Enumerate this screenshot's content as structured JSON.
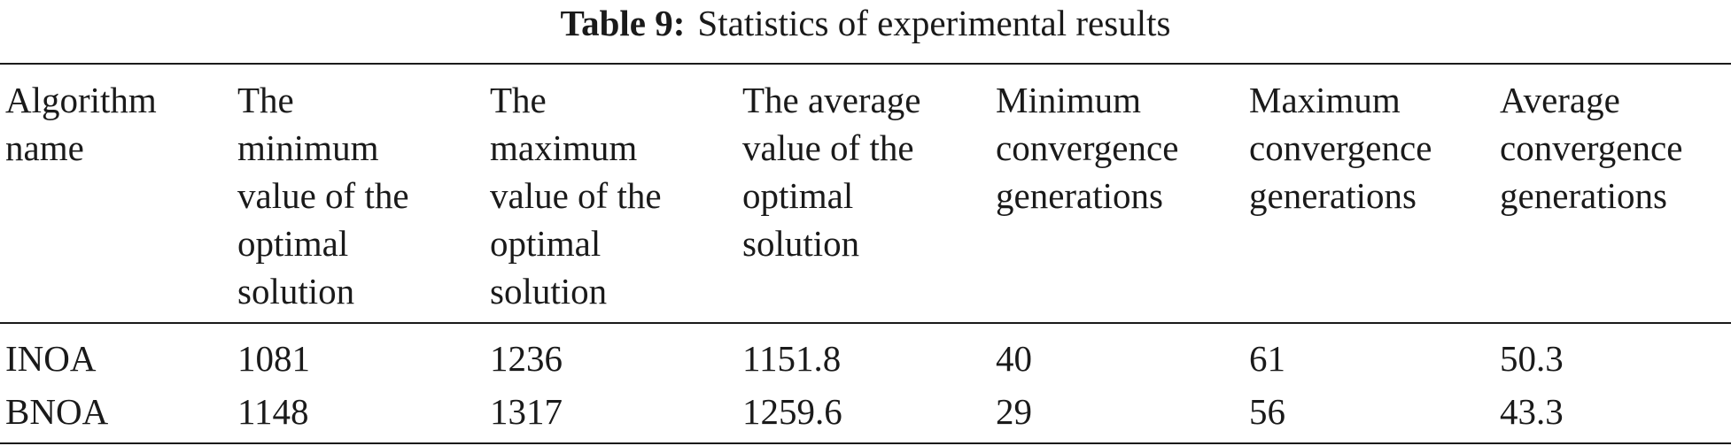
{
  "caption": {
    "label": "Table 9:",
    "text": "Statistics of experimental results"
  },
  "table": {
    "headers": [
      "Algorithm\nname",
      "The\nminimum\nvalue of the\noptimal\nsolution",
      "The\nmaximum\nvalue of the\noptimal\nsolution",
      "The average\nvalue of the\noptimal\nsolution",
      "Minimum\nconvergence\ngenerations",
      "Maximum\nconvergence\ngenerations",
      "Average\nconvergence\ngenerations"
    ],
    "rows": [
      [
        "INOA",
        "1081",
        "1236",
        "1151.8",
        "40",
        "61",
        "50.3"
      ],
      [
        "BNOA",
        "1148",
        "1317",
        "1259.6",
        "29",
        "56",
        "43.3"
      ]
    ]
  }
}
